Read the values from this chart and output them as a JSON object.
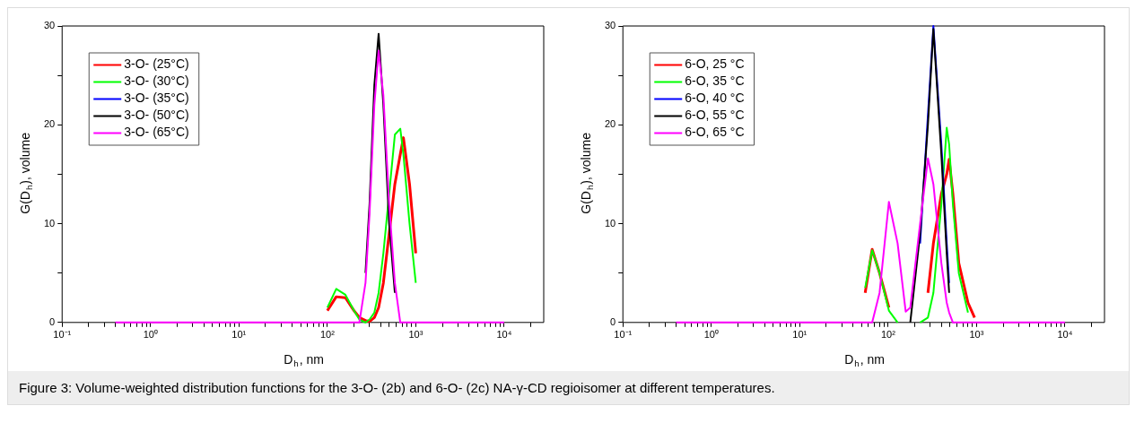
{
  "chart_data": [
    {
      "type": "line",
      "xlabel": "D$_{h}$, nm",
      "ylabel": "G(D$_{h}$), volume",
      "log": "x",
      "legend": "top left",
      "marker": "none",
      "line_style": "solid",
      "grid": false,
      "xlim": [
        0.1,
        28000
      ],
      "ylim": [
        0,
        30
      ],
      "xticks": [
        {
          "value": 0.1,
          "label": "10⁻¹"
        },
        {
          "value": 0.2,
          "label": null
        },
        {
          "value": 0.3,
          "label": null
        },
        {
          "value": 0.4,
          "label": null
        },
        {
          "value": 0.5,
          "label": null
        },
        {
          "value": 0.6,
          "label": null
        },
        {
          "value": 0.7,
          "label": null
        },
        {
          "value": 0.8,
          "label": null
        },
        {
          "value": 0.9,
          "label": null
        },
        {
          "value": 1,
          "label": "10⁰"
        },
        {
          "value": 2,
          "label": null
        },
        {
          "value": 3,
          "label": null
        },
        {
          "value": 4,
          "label": null
        },
        {
          "value": 5,
          "label": null
        },
        {
          "value": 6,
          "label": null
        },
        {
          "value": 7,
          "label": null
        },
        {
          "value": 8,
          "label": null
        },
        {
          "value": 9,
          "label": null
        },
        {
          "value": 10,
          "label": "10¹"
        },
        {
          "value": 20,
          "label": null
        },
        {
          "value": 30,
          "label": null
        },
        {
          "value": 40,
          "label": null
        },
        {
          "value": 50,
          "label": null
        },
        {
          "value": 60,
          "label": null
        },
        {
          "value": 70,
          "label": null
        },
        {
          "value": 80,
          "label": null
        },
        {
          "value": 90,
          "label": null
        },
        {
          "value": 100,
          "label": "10²"
        },
        {
          "value": 200,
          "label": null
        },
        {
          "value": 300,
          "label": null
        },
        {
          "value": 400,
          "label": null
        },
        {
          "value": 500,
          "label": null
        },
        {
          "value": 600,
          "label": null
        },
        {
          "value": 700,
          "label": null
        },
        {
          "value": 800,
          "label": null
        },
        {
          "value": 900,
          "label": null
        },
        {
          "value": 1000,
          "label": "10³"
        },
        {
          "value": 2000,
          "label": null
        },
        {
          "value": 3000,
          "label": null
        },
        {
          "value": 4000,
          "label": null
        },
        {
          "value": 5000,
          "label": null
        },
        {
          "value": 6000,
          "label": null
        },
        {
          "value": 7000,
          "label": null
        },
        {
          "value": 8000,
          "label": null
        },
        {
          "value": 9000,
          "label": null
        },
        {
          "value": 10000,
          "label": "10⁴"
        },
        {
          "value": 20000,
          "label": null
        }
      ],
      "yticks": [
        0,
        {
          "value": 5,
          "label": null
        },
        10,
        {
          "value": 15,
          "label": null
        },
        20,
        {
          "value": 25,
          "label": null
        },
        30
      ],
      "x": [
        0.4,
        60,
        76,
        100,
        126,
        160,
        200,
        230,
        270,
        300,
        340,
        380,
        430,
        500,
        580,
        668,
        725,
        850,
        1000,
        1230,
        10000
      ],
      "series": [
        {
          "name": "3-O- (25°C)",
          "color": "#ff0000",
          "values": [
            null,
            null,
            null,
            1.2,
            2.6,
            2.5,
            1.2,
            0.5,
            0.2,
            0.1,
            0.5,
            1.5,
            4,
            9,
            14,
            17,
            18.7,
            14,
            7,
            null,
            null
          ]
        },
        {
          "name": "3-O- (30°C)",
          "color": "#00ff00",
          "values": [
            null,
            null,
            null,
            1.5,
            3.4,
            2.8,
            1.2,
            0.3,
            0,
            0.3,
            1,
            3,
            7,
            13,
            19,
            19.6,
            17,
            10,
            4,
            null,
            null
          ]
        },
        {
          "name": "3-O- (35°C)",
          "color": "#0000ff",
          "values": [
            null,
            null,
            null,
            null,
            null,
            null,
            null,
            null,
            null,
            null,
            null,
            null,
            null,
            null,
            null,
            null,
            null,
            null,
            null,
            null,
            null
          ]
        },
        {
          "name": "3-O- (50°C)",
          "color": "#000000",
          "values": [
            null,
            null,
            null,
            null,
            null,
            null,
            null,
            null,
            5,
            12,
            24,
            29.2,
            22,
            10,
            3,
            null,
            null,
            null,
            null,
            null,
            null
          ]
        },
        {
          "name": "3-O- (65°C)",
          "color": "#ff00ff",
          "values": [
            0,
            0,
            0,
            0,
            0,
            0,
            0,
            0,
            4,
            11,
            22,
            27.5,
            23,
            12,
            4,
            0,
            0,
            0,
            0,
            0,
            0
          ]
        }
      ],
      "annotations": [
        "Figure 3: Volume-weighted distribution functions for the 3-O- (2b) and 6-O- (2c) NA-γ-CD regioisomer at different temperatures."
      ]
    },
    {
      "type": "line",
      "xlabel": "D$_{h}$, nm",
      "ylabel": "G(D$_{h}$), volume",
      "log": "x",
      "legend": "top left",
      "marker": "none",
      "line_style": "solid",
      "grid": false,
      "xlim": [
        0.1,
        28000
      ],
      "ylim": [
        0,
        30
      ],
      "xticks": [
        {
          "value": 0.1,
          "label": "10⁻¹"
        },
        {
          "value": 0.2,
          "label": null
        },
        {
          "value": 0.3,
          "label": null
        },
        {
          "value": 0.4,
          "label": null
        },
        {
          "value": 0.5,
          "label": null
        },
        {
          "value": 0.6,
          "label": null
        },
        {
          "value": 0.7,
          "label": null
        },
        {
          "value": 0.8,
          "label": null
        },
        {
          "value": 0.9,
          "label": null
        },
        {
          "value": 1,
          "label": "10⁰"
        },
        {
          "value": 2,
          "label": null
        },
        {
          "value": 3,
          "label": null
        },
        {
          "value": 4,
          "label": null
        },
        {
          "value": 5,
          "label": null
        },
        {
          "value": 6,
          "label": null
        },
        {
          "value": 7,
          "label": null
        },
        {
          "value": 8,
          "label": null
        },
        {
          "value": 9,
          "label": null
        },
        {
          "value": 10,
          "label": "10¹"
        },
        {
          "value": 20,
          "label": null
        },
        {
          "value": 30,
          "label": null
        },
        {
          "value": 40,
          "label": null
        },
        {
          "value": 50,
          "label": null
        },
        {
          "value": 60,
          "label": null
        },
        {
          "value": 70,
          "label": null
        },
        {
          "value": 80,
          "label": null
        },
        {
          "value": 90,
          "label": null
        },
        {
          "value": 100,
          "label": "10²"
        },
        {
          "value": 200,
          "label": null
        },
        {
          "value": 300,
          "label": null
        },
        {
          "value": 400,
          "label": null
        },
        {
          "value": 500,
          "label": null
        },
        {
          "value": 600,
          "label": null
        },
        {
          "value": 700,
          "label": null
        },
        {
          "value": 800,
          "label": null
        },
        {
          "value": 900,
          "label": null
        },
        {
          "value": 1000,
          "label": "10³"
        },
        {
          "value": 2000,
          "label": null
        },
        {
          "value": 3000,
          "label": null
        },
        {
          "value": 4000,
          "label": null
        },
        {
          "value": 5000,
          "label": null
        },
        {
          "value": 6000,
          "label": null
        },
        {
          "value": 7000,
          "label": null
        },
        {
          "value": 8000,
          "label": null
        },
        {
          "value": 9000,
          "label": null
        },
        {
          "value": 10000,
          "label": "10⁴"
        },
        {
          "value": 20000,
          "label": null
        }
      ],
      "yticks": [
        0,
        {
          "value": 5,
          "label": null
        },
        10,
        {
          "value": 15,
          "label": null
        },
        20,
        {
          "value": 25,
          "label": null
        },
        30
      ],
      "x": [
        0.4,
        35,
        43,
        55,
        66,
        80,
        102,
        128,
        158,
        178,
        230,
        282,
        325,
        400,
        460,
        490,
        540,
        630,
        800,
        950,
        1150,
        10000
      ],
      "series": [
        {
          "name": "6-O, 25 °C",
          "color": "#ff0000",
          "values": [
            null,
            null,
            null,
            3,
            7.4,
            5,
            1.5,
            null,
            null,
            null,
            null,
            3,
            8,
            13,
            15,
            16.5,
            13,
            6,
            2,
            0.5,
            null,
            null
          ]
        },
        {
          "name": "6-O, 35 °C",
          "color": "#00ff00",
          "values": [
            null,
            null,
            null,
            3.5,
            7.3,
            5,
            1.2,
            0,
            null,
            null,
            0,
            0.5,
            3,
            12,
            19.7,
            18,
            12,
            5,
            1,
            null,
            null,
            null
          ]
        },
        {
          "name": "6-O, 40 °C",
          "color": "#0000ff",
          "values": [
            null,
            null,
            null,
            null,
            null,
            null,
            null,
            null,
            null,
            null,
            8,
            21,
            30,
            18,
            8,
            4,
            null,
            null,
            null,
            null,
            null,
            null
          ]
        },
        {
          "name": "6-O, 55 °C",
          "color": "#000000",
          "values": [
            null,
            null,
            null,
            null,
            null,
            null,
            null,
            null,
            null,
            0,
            9,
            20,
            29.7,
            17,
            7,
            3,
            null,
            null,
            null,
            null,
            null,
            null
          ]
        },
        {
          "name": "6-O, 65 °C",
          "color": "#ff00ff",
          "values": [
            0,
            0,
            0,
            0,
            0,
            3,
            12.2,
            8,
            1.1,
            1.5,
            10,
            16.6,
            14,
            6,
            2,
            1,
            0,
            0,
            0,
            0,
            0,
            0
          ]
        }
      ]
    }
  ]
}
